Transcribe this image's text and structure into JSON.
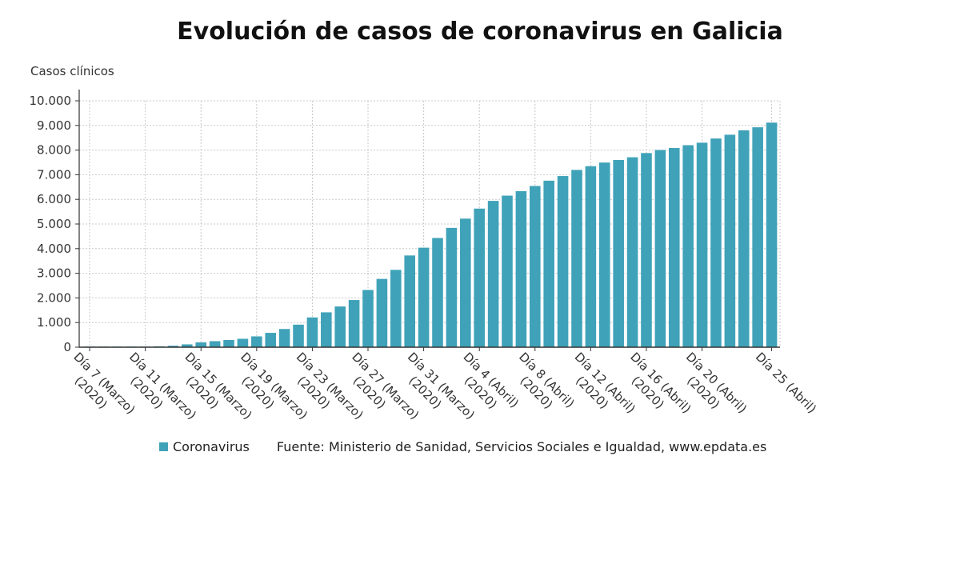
{
  "chart_data": {
    "type": "bar",
    "title": "Evolución de casos de coronavirus en Galicia",
    "ylabel": "Casos clínicos",
    "xlabel": "",
    "ylim": [
      0,
      10000
    ],
    "yticks": [
      "0",
      "1.000",
      "2.000",
      "3.000",
      "4.000",
      "5.000",
      "6.000",
      "7.000",
      "8.000",
      "9.000",
      "10.000"
    ],
    "grid": true,
    "legend_position": "bottom",
    "bar_color": "#3fa2b8",
    "x_tick_labels": [
      {
        "index": 0,
        "line1": "Día 7 (Marzo)",
        "line2": "(2020)"
      },
      {
        "index": 4,
        "line1": "Día 11 (Marzo)",
        "line2": "(2020)"
      },
      {
        "index": 8,
        "line1": "Día 15 (Marzo)",
        "line2": "(2020)"
      },
      {
        "index": 12,
        "line1": "Día 19 (Marzo)",
        "line2": "(2020)"
      },
      {
        "index": 16,
        "line1": "Día 23 (Marzo)",
        "line2": "(2020)"
      },
      {
        "index": 20,
        "line1": "Día 27 (Marzo)",
        "line2": "(2020)"
      },
      {
        "index": 24,
        "line1": "Día 31 (Marzo)",
        "line2": "(2020)"
      },
      {
        "index": 28,
        "line1": "Día 4 (Abril)",
        "line2": "(2020)"
      },
      {
        "index": 32,
        "line1": "Día 8 (Abril)",
        "line2": "(2020)"
      },
      {
        "index": 36,
        "line1": "Día 12 (Abril)",
        "line2": "(2020)"
      },
      {
        "index": 40,
        "line1": "Día 16 (Abril)",
        "line2": "(2020)"
      },
      {
        "index": 44,
        "line1": "Día 20 (Abril)",
        "line2": "(2020)"
      },
      {
        "index": 49,
        "line1": "Día 25 (Abril)",
        "line2": ""
      }
    ],
    "series": [
      {
        "name": "Coronavirus",
        "values": [
          6,
          6,
          6,
          18,
          22,
          35,
          60,
          115,
          195,
          245,
          292,
          341,
          439,
          582,
          739,
          915,
          1208,
          1415,
          1653,
          1914,
          2322,
          2772,
          3139,
          3723,
          4039,
          4432,
          4842,
          5218,
          5625,
          5938,
          6151,
          6331,
          6543,
          6758,
          6946,
          7194,
          7346,
          7494,
          7598,
          7708,
          7879,
          8003,
          8084,
          8198,
          8300,
          8470,
          8623,
          8804,
          8925,
          9114
        ]
      }
    ]
  },
  "legend": {
    "series_label": "Coronavirus",
    "source": "Fuente: Ministerio de Sanidad, Servicios Sociales e Igualdad, www.epdata.es"
  }
}
